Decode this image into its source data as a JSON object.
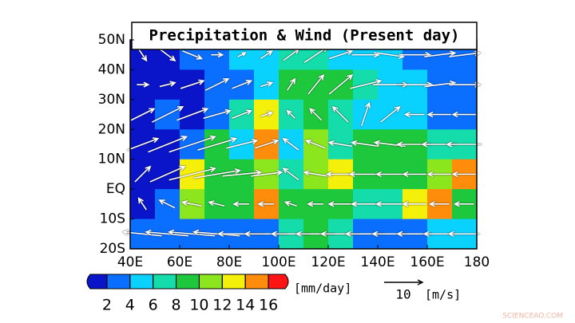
{
  "chart_data": {
    "type": "map",
    "title": "Precipitation & Wind (Present day)",
    "xlim": [
      40,
      180
    ],
    "ylim": [
      -20,
      50
    ],
    "xticks": [
      {
        "value": 40,
        "label": "40E"
      },
      {
        "value": 60,
        "label": "60E"
      },
      {
        "value": 80,
        "label": "80E"
      },
      {
        "value": 100,
        "label": "100E"
      },
      {
        "value": 120,
        "label": "120E"
      },
      {
        "value": 140,
        "label": "140E"
      },
      {
        "value": 160,
        "label": "160E"
      },
      {
        "value": 180,
        "label": "180"
      }
    ],
    "yticks": [
      {
        "value": 50,
        "label": "50N"
      },
      {
        "value": 40,
        "label": "40N"
      },
      {
        "value": 30,
        "label": "30N"
      },
      {
        "value": 20,
        "label": "20N"
      },
      {
        "value": 10,
        "label": "10N"
      },
      {
        "value": 0,
        "label": "EQ"
      },
      {
        "value": -10,
        "label": "10S"
      },
      {
        "value": -20,
        "label": "20S"
      }
    ],
    "precip": {
      "units": "[mm/day]",
      "levels": [
        2,
        4,
        6,
        8,
        10,
        12,
        14,
        16
      ],
      "colors": [
        "#0a14c8",
        "#0a6eff",
        "#0ad2ff",
        "#14dcaa",
        "#1ec83c",
        "#8ce61e",
        "#f5f00a",
        "#ff8c0a",
        "#ff1414"
      ],
      "lat": [
        45,
        35,
        25,
        15,
        5,
        -5,
        -15
      ],
      "lon": [
        45,
        55,
        65,
        75,
        85,
        95,
        105,
        115,
        125,
        135,
        145,
        155,
        165,
        175
      ],
      "values": [
        [
          1,
          1,
          2,
          3,
          4,
          5,
          6,
          7,
          5,
          5,
          5,
          3,
          3,
          2
        ],
        [
          1,
          1,
          1,
          3,
          3,
          4,
          8,
          9,
          8,
          7,
          5,
          4,
          3,
          3
        ],
        [
          1,
          2,
          1,
          3,
          6,
          12,
          6,
          8,
          6,
          5,
          4,
          4,
          3,
          2
        ],
        [
          1,
          1,
          3,
          8,
          4,
          14,
          4,
          10,
          7,
          8,
          9,
          8,
          7,
          7
        ],
        [
          1,
          1,
          13,
          9,
          8,
          10,
          6,
          10,
          12,
          8,
          8,
          9,
          10,
          14
        ],
        [
          1,
          2,
          10,
          8,
          9,
          14,
          8,
          8,
          9,
          6,
          7,
          12,
          14,
          8
        ],
        [
          2,
          2,
          2,
          2,
          2,
          3,
          6,
          8,
          6,
          3,
          2,
          3,
          4,
          5
        ]
      ]
    },
    "wind": {
      "units": "[m/s]",
      "reference": 10,
      "u": [
        [
          2,
          4,
          5,
          3,
          2,
          3,
          4,
          6,
          6,
          7,
          7,
          8,
          8,
          8
        ],
        [
          3,
          4,
          6,
          6,
          5,
          3,
          2,
          4,
          6,
          8,
          9,
          9,
          8,
          8
        ],
        [
          6,
          8,
          8,
          7,
          5,
          3,
          -2,
          -3,
          -4,
          2,
          5,
          -5,
          -6,
          -6
        ],
        [
          8,
          10,
          12,
          10,
          8,
          6,
          -4,
          -5,
          -6,
          -7,
          -8,
          -9,
          -9,
          -9
        ],
        [
          4,
          9,
          12,
          12,
          10,
          8,
          -4,
          -6,
          -7,
          -8,
          -7,
          -6,
          -6,
          -6
        ],
        [
          -2,
          -4,
          -5,
          -4,
          -4,
          -4,
          -3,
          -4,
          -6,
          -7,
          -7,
          -6,
          -5,
          -5
        ],
        [
          -10,
          -11,
          -12,
          -12,
          -12,
          -11,
          -10,
          -10,
          -10,
          -10,
          -9,
          -9,
          -8,
          -8
        ]
      ],
      "v": [
        [
          -3,
          -3,
          -2,
          0,
          1,
          2,
          3,
          4,
          2,
          0,
          -1,
          0,
          1,
          1
        ],
        [
          0,
          1,
          2,
          3,
          2,
          1,
          3,
          5,
          5,
          2,
          0,
          0,
          1,
          0
        ],
        [
          3,
          4,
          3,
          2,
          2,
          1,
          2,
          3,
          4,
          6,
          4,
          0,
          0,
          0
        ],
        [
          3,
          4,
          4,
          3,
          2,
          2,
          3,
          2,
          1,
          1,
          1,
          0,
          0,
          0
        ],
        [
          4,
          4,
          3,
          2,
          1,
          1,
          3,
          1,
          0,
          0,
          0,
          0,
          0,
          0
        ],
        [
          3,
          2,
          1,
          1,
          0,
          0,
          1,
          0,
          0,
          0,
          0,
          0,
          0,
          0
        ],
        [
          1,
          1,
          1,
          1,
          0,
          0,
          0,
          0,
          0,
          0,
          0,
          0,
          0,
          0
        ]
      ]
    },
    "watermark": "SCIENCEAO.COM"
  }
}
